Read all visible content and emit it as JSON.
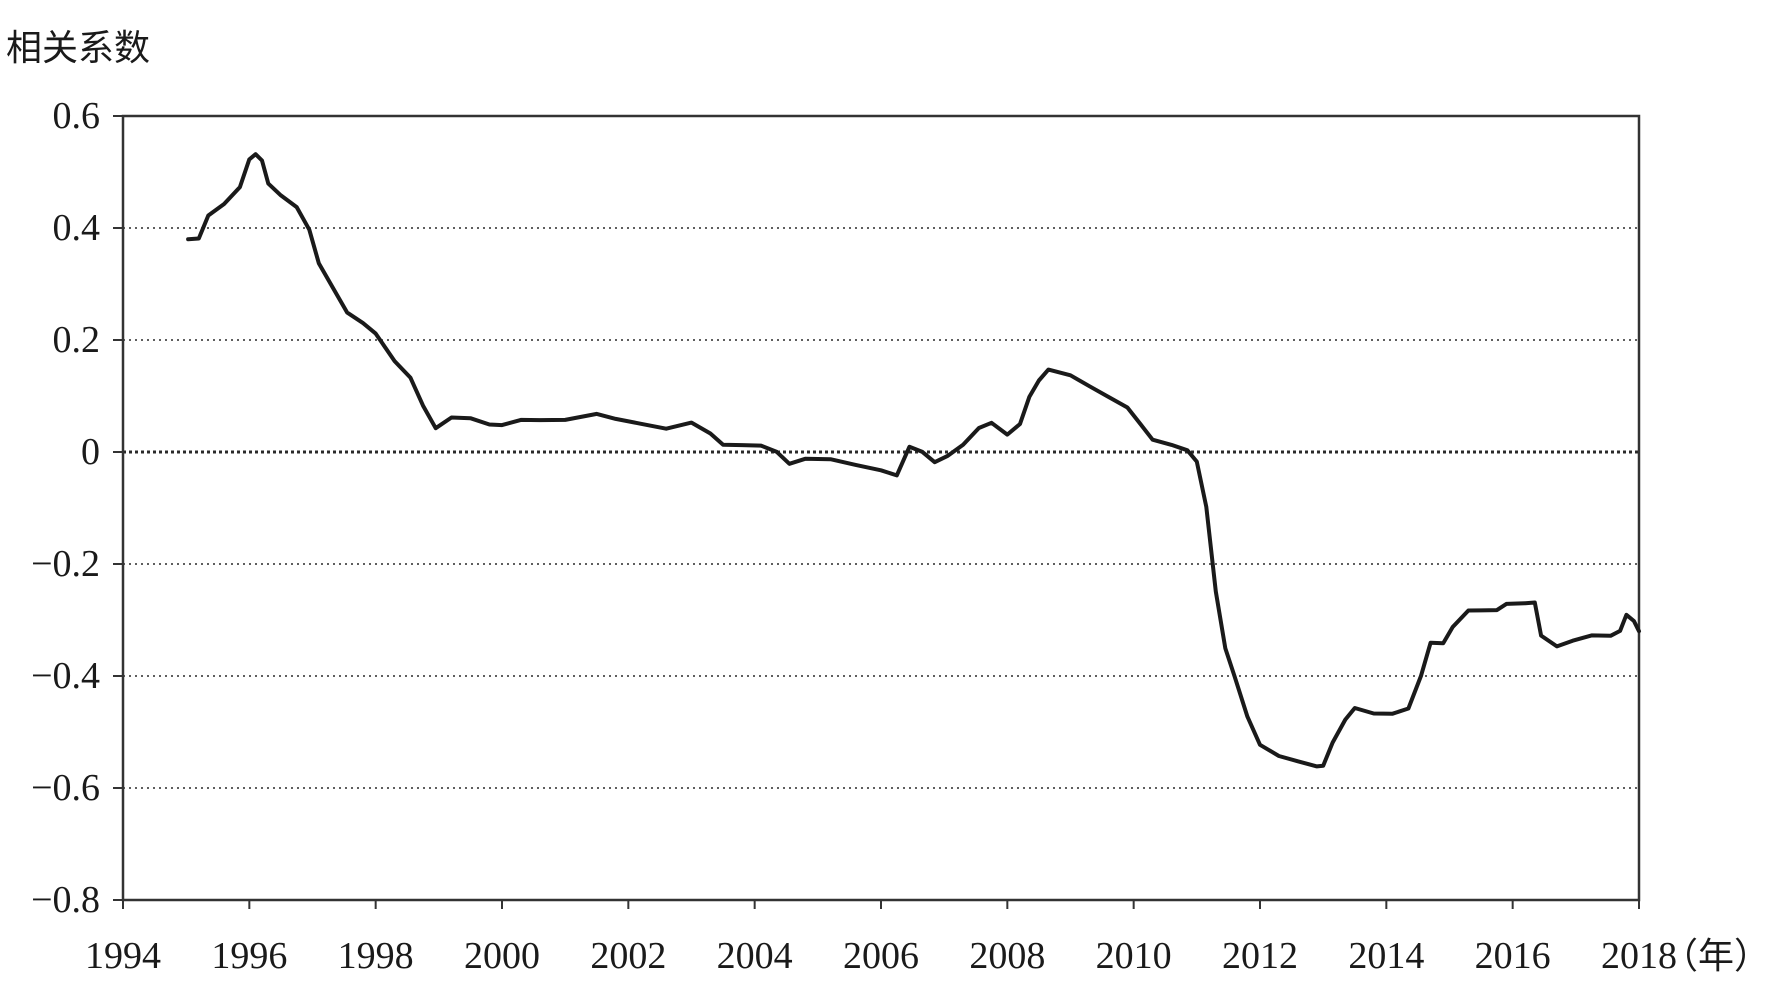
{
  "chart_data": {
    "type": "line",
    "title": "",
    "ylabel": "相关系数",
    "xlabel": "",
    "x_unit_label": "（年）",
    "ylim": [
      -0.8,
      0.6
    ],
    "xlim": [
      1994,
      2018
    ],
    "grid": "horizontal-dotted",
    "yticks": [
      {
        "value": 0.6,
        "label": "0.6"
      },
      {
        "value": 0.4,
        "label": "0.4"
      },
      {
        "value": 0.2,
        "label": "0.2"
      },
      {
        "value": 0,
        "label": "0"
      },
      {
        "value": -0.2,
        "label": "−0.2"
      },
      {
        "value": -0.4,
        "label": "−0.4"
      },
      {
        "value": -0.6,
        "label": "−0.6"
      },
      {
        "value": -0.8,
        "label": "−0.8"
      }
    ],
    "xticks": [
      {
        "value": 1994,
        "label": "1994"
      },
      {
        "value": 1996,
        "label": "1996"
      },
      {
        "value": 1998,
        "label": "1998"
      },
      {
        "value": 2000,
        "label": "2000"
      },
      {
        "value": 2002,
        "label": "2002"
      },
      {
        "value": 2004,
        "label": "2004"
      },
      {
        "value": 2006,
        "label": "2006"
      },
      {
        "value": 2008,
        "label": "2008"
      },
      {
        "value": 2010,
        "label": "2010"
      },
      {
        "value": 2012,
        "label": "2012"
      },
      {
        "value": 2014,
        "label": "2014"
      },
      {
        "value": 2016,
        "label": "2016"
      },
      {
        "value": 2018,
        "label": "2018"
      }
    ],
    "series": [
      {
        "color": "#1a1a1a",
        "points": [
          [
            1995.03,
            0.38
          ],
          [
            1995.2,
            0.38
          ],
          [
            1995.35,
            0.42
          ],
          [
            1995.6,
            0.44
          ],
          [
            1995.85,
            0.47
          ],
          [
            1996.0,
            0.52
          ],
          [
            1996.1,
            0.53
          ],
          [
            1996.2,
            0.52
          ],
          [
            1996.3,
            0.48
          ],
          [
            1996.5,
            0.46
          ],
          [
            1996.75,
            0.44
          ],
          [
            1996.95,
            0.4
          ],
          [
            1997.1,
            0.34
          ],
          [
            1997.35,
            0.29
          ],
          [
            1997.55,
            0.25
          ],
          [
            1997.8,
            0.23
          ],
          [
            1998.0,
            0.21
          ],
          [
            1998.3,
            0.16
          ],
          [
            1998.55,
            0.13
          ],
          [
            1998.75,
            0.08
          ],
          [
            1998.95,
            0.04
          ],
          [
            1999.2,
            0.06
          ],
          [
            1999.5,
            0.06
          ],
          [
            1999.8,
            0.05
          ],
          [
            2000.0,
            0.05
          ],
          [
            2000.3,
            0.06
          ],
          [
            2000.6,
            0.06
          ],
          [
            2001.0,
            0.06
          ],
          [
            2001.5,
            0.07
          ],
          [
            2001.8,
            0.06
          ],
          [
            2002.2,
            0.05
          ],
          [
            2002.6,
            0.04
          ],
          [
            2003.0,
            0.05
          ],
          [
            2003.3,
            0.03
          ],
          [
            2003.5,
            0.01
          ],
          [
            2003.8,
            0.01
          ],
          [
            2004.1,
            0.01
          ],
          [
            2004.35,
            0.0
          ],
          [
            2004.55,
            -0.02
          ],
          [
            2004.8,
            -0.01
          ],
          [
            2005.2,
            -0.01
          ],
          [
            2005.6,
            -0.02
          ],
          [
            2006.0,
            -0.03
          ],
          [
            2006.25,
            -0.04
          ],
          [
            2006.45,
            0.01
          ],
          [
            2006.65,
            0.0
          ],
          [
            2006.85,
            -0.02
          ],
          [
            2007.05,
            -0.01
          ],
          [
            2007.3,
            0.01
          ],
          [
            2007.55,
            0.04
          ],
          [
            2007.75,
            0.05
          ],
          [
            2008.0,
            0.03
          ],
          [
            2008.2,
            0.05
          ],
          [
            2008.35,
            0.1
          ],
          [
            2008.5,
            0.13
          ],
          [
            2008.65,
            0.15
          ],
          [
            2009.0,
            0.14
          ],
          [
            2009.3,
            0.12
          ],
          [
            2009.6,
            0.1
          ],
          [
            2009.9,
            0.08
          ],
          [
            2010.1,
            0.05
          ],
          [
            2010.3,
            0.02
          ],
          [
            2010.6,
            0.01
          ],
          [
            2010.85,
            0.0
          ],
          [
            2011.0,
            -0.02
          ],
          [
            2011.15,
            -0.1
          ],
          [
            2011.3,
            -0.25
          ],
          [
            2011.45,
            -0.35
          ],
          [
            2011.6,
            -0.4
          ],
          [
            2011.8,
            -0.47
          ],
          [
            2012.0,
            -0.52
          ],
          [
            2012.3,
            -0.54
          ],
          [
            2012.6,
            -0.55
          ],
          [
            2012.9,
            -0.56
          ],
          [
            2013.0,
            -0.56
          ],
          [
            2013.15,
            -0.52
          ],
          [
            2013.35,
            -0.48
          ],
          [
            2013.5,
            -0.46
          ],
          [
            2013.8,
            -0.47
          ],
          [
            2014.1,
            -0.47
          ],
          [
            2014.35,
            -0.46
          ],
          [
            2014.55,
            -0.4
          ],
          [
            2014.7,
            -0.34
          ],
          [
            2014.9,
            -0.34
          ],
          [
            2015.05,
            -0.31
          ],
          [
            2015.3,
            -0.28
          ],
          [
            2015.5,
            -0.28
          ],
          [
            2015.75,
            -0.28
          ],
          [
            2015.9,
            -0.27
          ],
          [
            2016.2,
            -0.27
          ],
          [
            2016.35,
            -0.27
          ],
          [
            2016.45,
            -0.33
          ],
          [
            2016.7,
            -0.35
          ],
          [
            2016.95,
            -0.34
          ],
          [
            2017.25,
            -0.33
          ],
          [
            2017.55,
            -0.33
          ],
          [
            2017.7,
            -0.32
          ],
          [
            2017.8,
            -0.29
          ],
          [
            2017.92,
            -0.3
          ],
          [
            2018.0,
            -0.32
          ]
        ]
      }
    ]
  }
}
